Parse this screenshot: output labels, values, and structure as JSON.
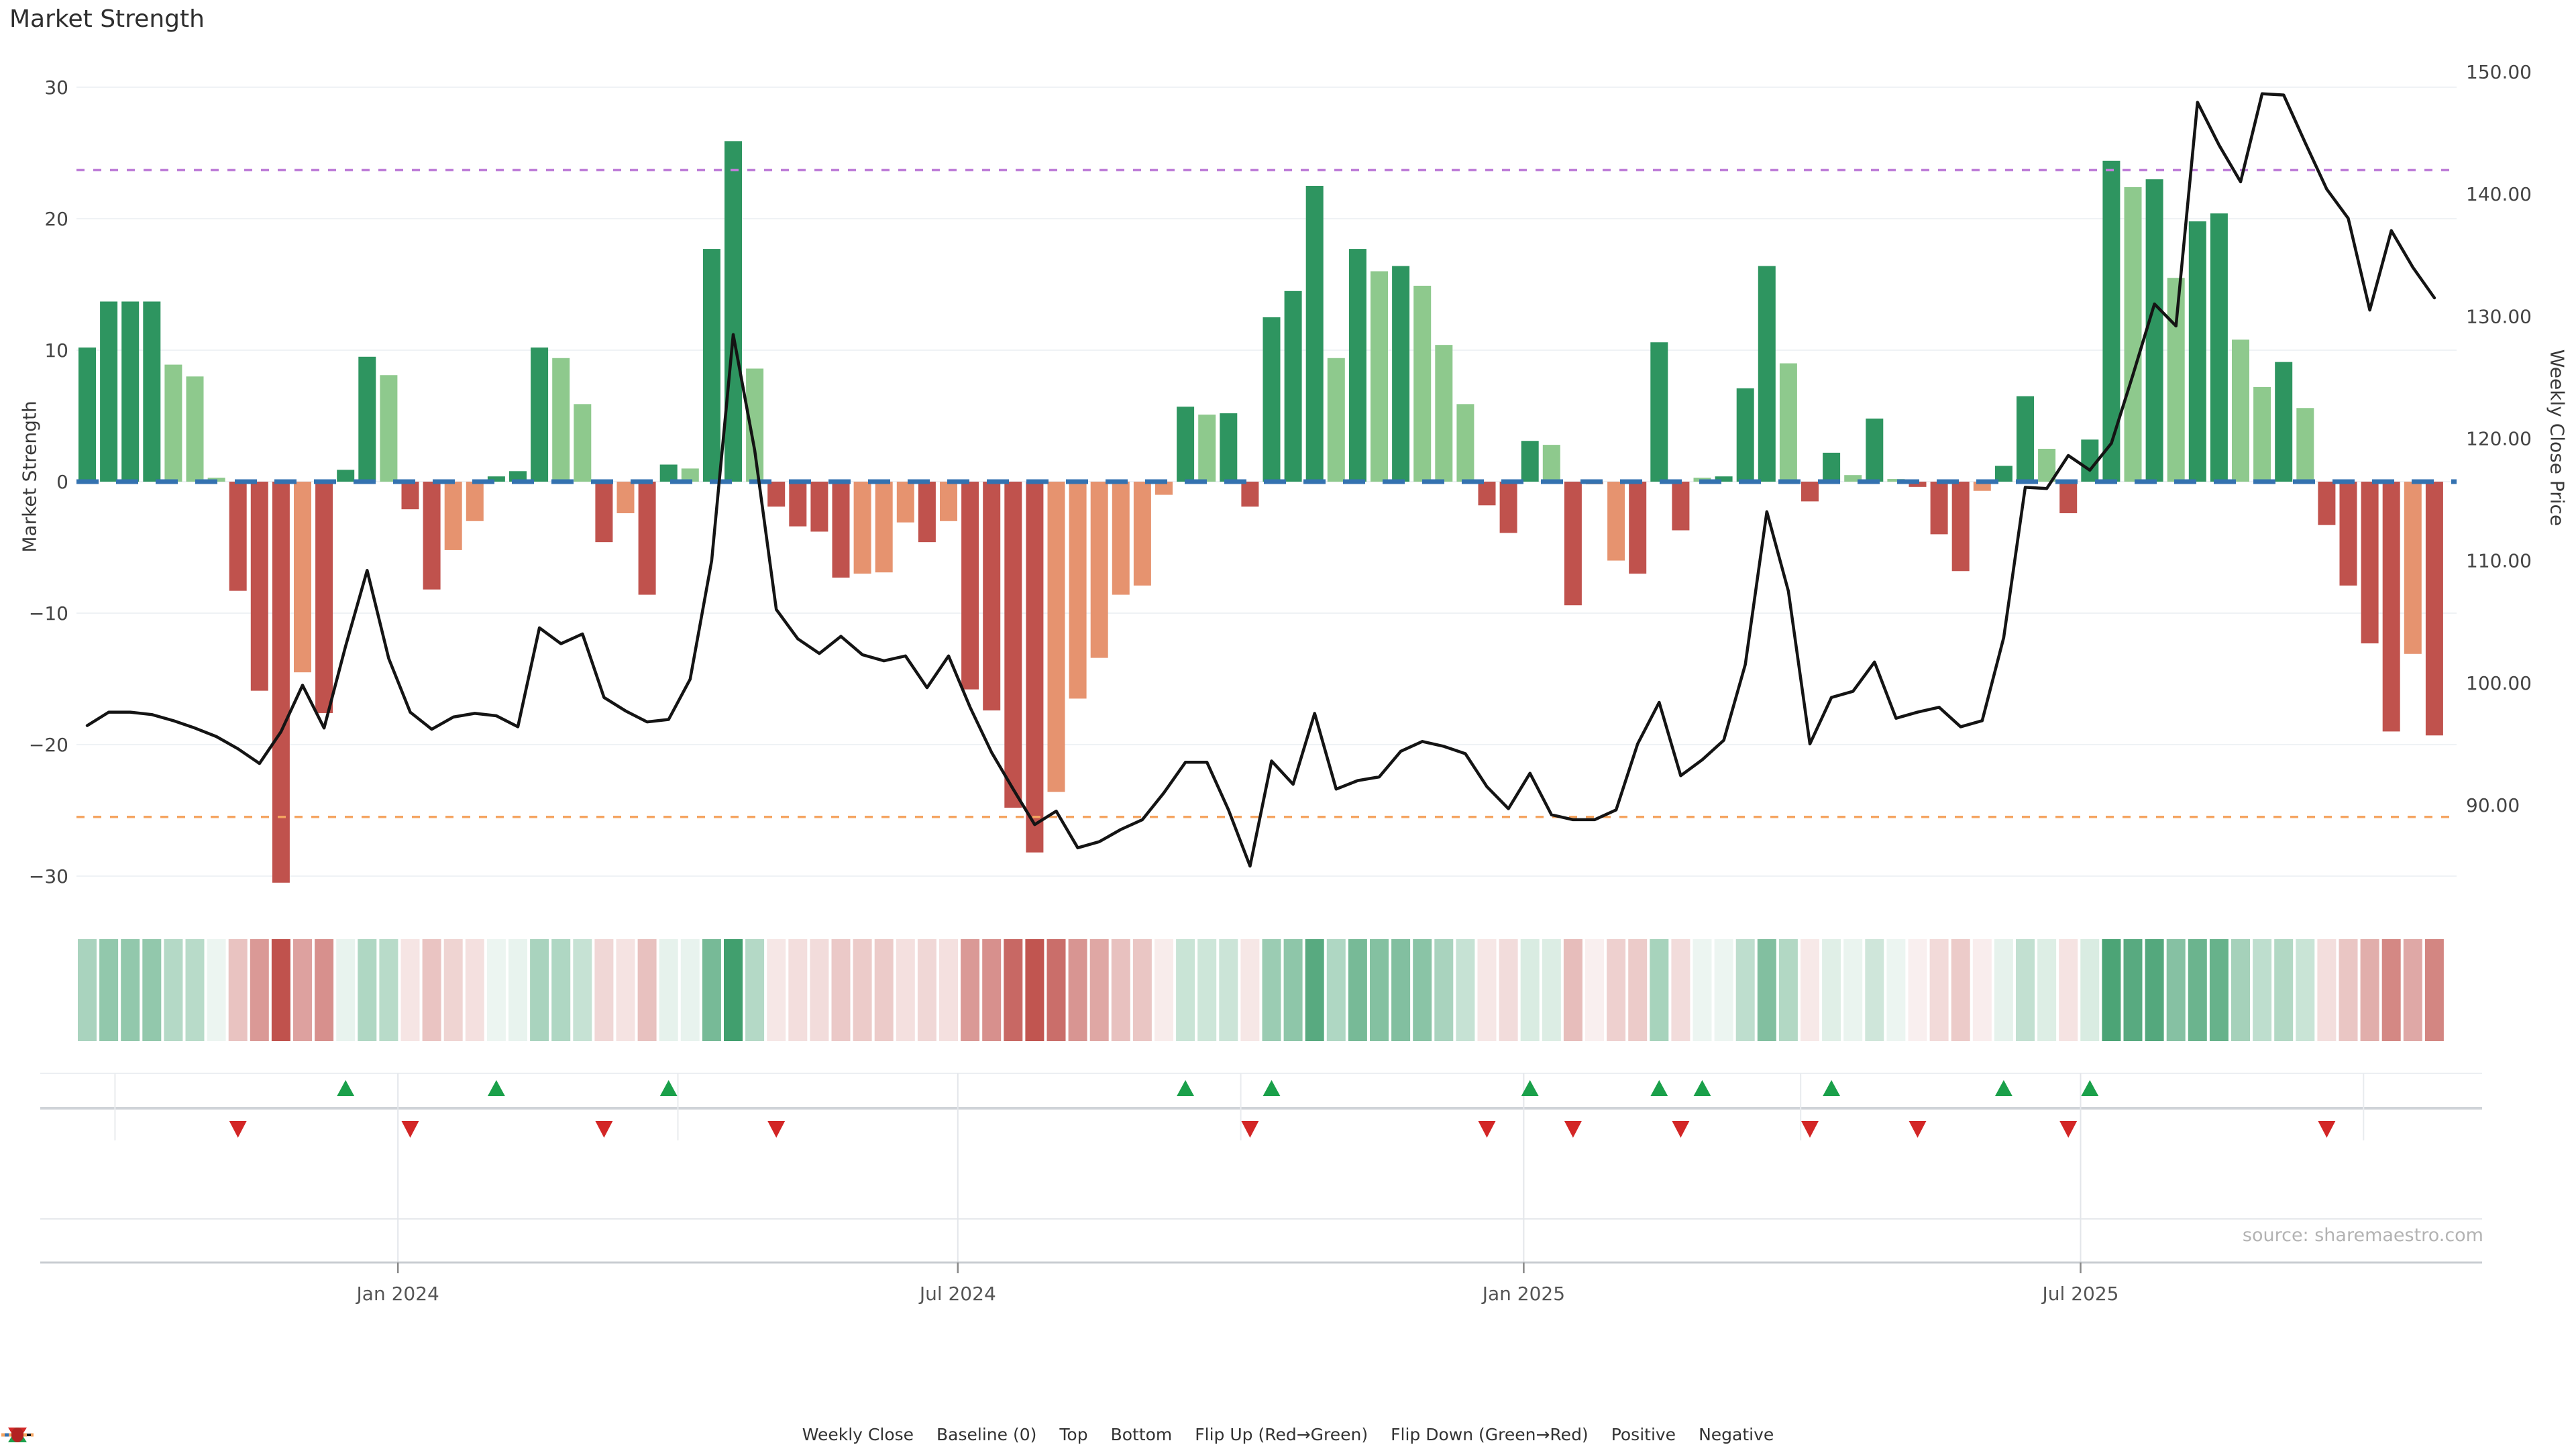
{
  "title": "Market Strength",
  "source_text": "source: sharemaestro.com",
  "left_axis": {
    "title": "Market Strength",
    "tick_labels": [
      "30",
      "20",
      "10",
      "0",
      "−10",
      "−20",
      "−30"
    ],
    "tick_values": [
      30,
      20,
      10,
      0,
      -10,
      -20,
      -30
    ],
    "min": -30,
    "max": 30
  },
  "right_axis": {
    "title": "Weekly Close Price",
    "tick_labels": [
      "150.00",
      "140.00",
      "130.00",
      "120.00",
      "110.00",
      "100.00",
      "90.00"
    ],
    "tick_values": [
      150,
      140,
      130,
      120,
      110,
      100,
      90
    ],
    "min": 90,
    "max": 150
  },
  "x_axis": {
    "major_ticks": [
      {
        "label": "Jan 2024",
        "week": 14.43
      },
      {
        "label": "Jul 2024",
        "week": 40.43
      },
      {
        "label": "Jan 2025",
        "week": 66.71
      },
      {
        "label": "Jul 2025",
        "week": 92.57
      }
    ],
    "minor_tick_weeks": [
      1.29,
      27.43,
      53.57,
      79.57,
      105.71
    ]
  },
  "legend": [
    {
      "label": "Weekly Close",
      "swatch": "line",
      "color": "#141414"
    },
    {
      "label": "Baseline (0)",
      "swatch": "dashed",
      "color": "#3472b0"
    },
    {
      "label": "Top",
      "swatch": "dotted",
      "color": "#bf7fd8"
    },
    {
      "label": "Bottom",
      "swatch": "dotted",
      "color": "#f4a460"
    },
    {
      "label": "Flip Up (Red→Green)",
      "swatch": "triangle-up",
      "color": "#1aa04a"
    },
    {
      "label": "Flip Down (Green→Red)",
      "swatch": "triangle-down",
      "color": "#d32626"
    },
    {
      "label": "Positive",
      "swatch": "circle",
      "color": "#228b22"
    },
    {
      "label": "Negative",
      "swatch": "circle",
      "color": "#b22222"
    }
  ],
  "colors": {
    "strong_positive": "#2e9560",
    "weak_positive": "#8ec98d",
    "strong_negative": "#c0524d",
    "weak_negative": "#e6936f",
    "baseline": "#3472b0",
    "top_line": "#bf7fd8",
    "bottom_line": "#f4a460",
    "price_line": "#141414",
    "flip_up": "#1aa04a",
    "flip_down": "#d32626",
    "gridline": "#eff2f5"
  },
  "chart_data": {
    "type": "bar",
    "subtype": "combo bar + line + heatmap strip + flip markers, weekly data",
    "title": "Market Strength",
    "xlabel": "",
    "ylabel": "Market Strength",
    "y2label": "Weekly Close Price",
    "ylim": [
      -30,
      30
    ],
    "y2lim": [
      90,
      150
    ],
    "reference_lines": {
      "baseline": 0,
      "top": 23.7,
      "bottom": -25.5
    },
    "weeks": 110,
    "strength": [
      10.2,
      13.7,
      13.7,
      13.7,
      8.9,
      8.0,
      0.3,
      -8.3,
      -15.9,
      -30.5,
      -14.5,
      -17.6,
      0.9,
      9.5,
      8.1,
      -2.1,
      -8.2,
      -5.2,
      -3.0,
      0.4,
      0.8,
      10.2,
      9.4,
      5.9,
      -4.6,
      -2.4,
      -8.6,
      1.3,
      1.0,
      17.7,
      25.9,
      8.6,
      -1.9,
      -3.4,
      -3.8,
      -7.3,
      -7.0,
      -6.9,
      -3.1,
      -4.6,
      -3.0,
      -15.8,
      -17.4,
      -24.8,
      -28.2,
      -23.6,
      -16.5,
      -13.4,
      -8.6,
      -7.9,
      -1.0,
      5.7,
      5.1,
      5.2,
      -1.9,
      12.5,
      14.5,
      22.5,
      9.4,
      17.7,
      16.0,
      16.4,
      14.9,
      10.4,
      5.9,
      -1.8,
      -3.9,
      3.1,
      2.8,
      -9.4,
      -0.2,
      -6.0,
      -7.0,
      10.6,
      -3.7,
      0.3,
      0.4,
      7.1,
      16.4,
      9.0,
      -1.5,
      2.2,
      0.5,
      4.8,
      0.2,
      -0.4,
      -4.0,
      -6.8,
      -0.7,
      1.2,
      6.5,
      2.5,
      -2.4,
      3.2,
      24.4,
      22.4,
      23.0,
      15.5,
      19.8,
      20.4,
      10.8,
      7.2,
      9.1,
      5.6,
      -3.3,
      -7.9,
      -12.3,
      -19.0,
      -13.1,
      -19.3
    ],
    "weak_flag": [
      0,
      0,
      0,
      0,
      1,
      1,
      1,
      0,
      0,
      0,
      1,
      0,
      0,
      0,
      1,
      0,
      0,
      1,
      1,
      0,
      0,
      0,
      1,
      1,
      0,
      1,
      0,
      0,
      1,
      0,
      0,
      1,
      0,
      0,
      0,
      0,
      1,
      1,
      1,
      0,
      1,
      0,
      0,
      0,
      0,
      1,
      1,
      1,
      1,
      1,
      1,
      0,
      1,
      0,
      0,
      0,
      0,
      0,
      1,
      0,
      1,
      0,
      1,
      1,
      1,
      0,
      0,
      0,
      1,
      0,
      1,
      1,
      0,
      0,
      0,
      1,
      0,
      0,
      0,
      1,
      0,
      0,
      1,
      0,
      1,
      0,
      0,
      0,
      1,
      0,
      0,
      1,
      0,
      0,
      0,
      1,
      0,
      1,
      0,
      0,
      1,
      1,
      0,
      1,
      0,
      0,
      0,
      0,
      1,
      0
    ],
    "weekly_close": [
      96.5,
      97.6,
      97.6,
      97.4,
      96.9,
      96.3,
      95.6,
      94.6,
      93.4,
      96.0,
      99.8,
      96.3,
      103.0,
      109.2,
      102.0,
      97.6,
      96.2,
      97.2,
      97.5,
      97.3,
      96.4,
      104.5,
      103.2,
      104.0,
      98.8,
      97.7,
      96.8,
      97.0,
      100.3,
      110.0,
      128.5,
      119.0,
      106.0,
      103.6,
      102.4,
      103.8,
      102.3,
      101.8,
      102.2,
      99.6,
      102.2,
      98.0,
      94.3,
      91.3,
      88.4,
      89.5,
      86.5,
      87.0,
      88.0,
      88.8,
      91.0,
      93.5,
      93.5,
      89.6,
      85.0,
      93.6,
      91.7,
      97.5,
      91.3,
      92.0,
      92.3,
      94.4,
      95.2,
      94.8,
      94.2,
      91.5,
      89.7,
      92.6,
      89.2,
      88.8,
      88.8,
      89.6,
      95.0,
      98.4,
      92.4,
      93.7,
      95.3,
      101.5,
      114.0,
      107.5,
      95.0,
      98.8,
      99.3,
      101.7,
      97.1,
      97.6,
      98.0,
      96.4,
      96.9,
      103.7,
      116.0,
      115.9,
      118.6,
      117.4,
      119.6,
      125.2,
      131.0,
      129.2,
      147.5,
      144.0,
      141.0,
      148.2,
      148.1,
      144.2,
      140.4,
      138.0,
      130.5,
      137.0,
      134.0,
      131.5
    ],
    "flip_rule": "up marker where strength turns positive after non-positive week; down marker where strength turns negative after non-negative week",
    "heatmap_strip": "one cell per week, green for positive / red for negative, opacity scaled by |strength|/30",
    "legend_position": "bottom center",
    "grid": "faint horizontal gridlines every 10 units; quarterly vertical gridlines in marker rows"
  }
}
